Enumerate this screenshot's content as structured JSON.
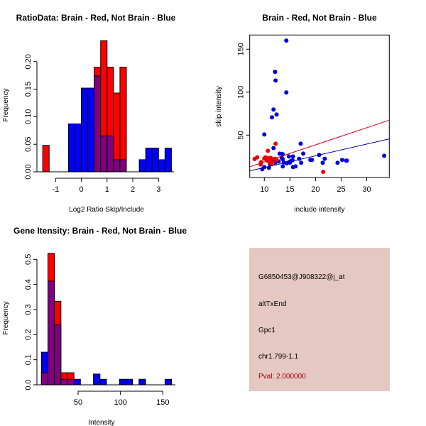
{
  "colors": {
    "red": "#ff0000",
    "blue": "#0000ff",
    "overlap": "#800080",
    "panel_bg": "#e6c8c2",
    "pval": "#a00000",
    "red_line": "#cc0022",
    "blue_line": "#000099"
  },
  "chart_data": [
    {
      "type": "bar",
      "title": "RatioData: Brain - Red, Not Brain - Blue",
      "xlabel": "Log2 Ratio Skip/Include",
      "ylabel": "Frequency",
      "xlim": [
        -1.6,
        3.6
      ],
      "ylim": [
        0,
        0.24
      ],
      "xticks": [
        -1,
        0,
        1,
        2,
        3
      ],
      "yticks": [
        "0.00",
        "0.05",
        "0.10",
        "0.15",
        "0.20"
      ],
      "bin_width": 0.25,
      "series": [
        {
          "name": "Not Brain",
          "color": "blue",
          "bins": [
            [
              -0.5,
              0.087
            ],
            [
              -0.25,
              0.087
            ],
            [
              0,
              0.152
            ],
            [
              0.25,
              0.152
            ],
            [
              0.5,
              0.174
            ],
            [
              0.75,
              0.065
            ],
            [
              1,
              0.065
            ],
            [
              1.25,
              0.022
            ],
            [
              1.5,
              0.022
            ],
            [
              2.25,
              0.022
            ],
            [
              2.5,
              0.043
            ],
            [
              2.75,
              0.043
            ],
            [
              3,
              0.022
            ],
            [
              3.25,
              0.043
            ]
          ]
        },
        {
          "name": "Brain",
          "color": "red",
          "bins": [
            [
              -1.5,
              0.048
            ],
            [
              0.5,
              0.19
            ],
            [
              0.75,
              0.238
            ],
            [
              1,
              0.19
            ],
            [
              1.25,
              0.143
            ],
            [
              1.5,
              0.19
            ]
          ]
        }
      ]
    },
    {
      "type": "scatter",
      "title": "Brain - Red, Not Brain - Blue",
      "xlabel": "include intensity",
      "ylabel": "skip intensity",
      "xlim": [
        7.15,
        34.4
      ],
      "ylim": [
        0.7,
        166.5
      ],
      "xticks": [
        10,
        15,
        20,
        25,
        30
      ],
      "yticks": [
        50,
        100,
        150
      ],
      "series": [
        {
          "name": "Not Brain",
          "color": "blue",
          "fit": {
            "slope": 1.365,
            "intercept": -1.35
          },
          "points": [
            [
              14.3,
              160
            ],
            [
              12.1,
              123.6
            ],
            [
              12.2,
              113.6
            ],
            [
              14.3,
              99.6
            ],
            [
              11.8,
              79.8
            ],
            [
              12.4,
              74
            ],
            [
              11.5,
              70.7
            ],
            [
              10,
              50.8
            ],
            [
              17.1,
              40
            ],
            [
              11.8,
              35
            ],
            [
              13,
              28.5
            ],
            [
              13.5,
              28.2
            ],
            [
              13.6,
              27.7
            ],
            [
              17.6,
              28.5
            ],
            [
              20.7,
              26.9
            ],
            [
              33.4,
              26
            ],
            [
              14.8,
              25.2
            ],
            [
              15.6,
              25.2
            ],
            [
              13.4,
              23.6
            ],
            [
              13.6,
              22
            ],
            [
              16.8,
              22.5
            ],
            [
              21.8,
              22.5
            ],
            [
              19,
              21.1
            ],
            [
              25.2,
              21.1
            ],
            [
              26,
              20.3
            ],
            [
              26.1,
              20.3
            ],
            [
              15.5,
              20.8
            ],
            [
              12.8,
              19.4
            ],
            [
              12.1,
              17.8
            ],
            [
              14.8,
              18.6
            ],
            [
              17.2,
              17.8
            ],
            [
              21.4,
              17.8
            ],
            [
              24.3,
              17.8
            ],
            [
              13.8,
              18.3
            ],
            [
              14.4,
              17.2
            ],
            [
              13.6,
              13.6
            ],
            [
              15.6,
              12.8
            ],
            [
              16.1,
              13.6
            ],
            [
              10,
              12.8
            ],
            [
              10.9,
              12
            ],
            [
              9.6,
              10.3
            ],
            [
              11.1,
              16.4
            ],
            [
              11.9,
              21.1
            ],
            [
              19.3,
              21.1
            ],
            [
              15.2,
              20
            ],
            [
              15,
              18
            ]
          ]
        },
        {
          "name": "Brain",
          "color": "red",
          "fit": {
            "slope": 1.99,
            "intercept": -1.1
          },
          "points": [
            [
              8.1,
              22.2
            ],
            [
              8.6,
              24.1
            ],
            [
              10.7,
              31.8
            ],
            [
              12.2,
              40
            ],
            [
              9.4,
              18.6
            ],
            [
              9.3,
              15.8
            ],
            [
              10.2,
              24.1
            ],
            [
              10.5,
              23.6
            ],
            [
              11.2,
              23.6
            ],
            [
              10.8,
              22.2
            ],
            [
              12.1,
              22.5
            ],
            [
              12.4,
              21.3
            ],
            [
              10.7,
              20
            ],
            [
              11.1,
              17.8
            ],
            [
              11.4,
              16.7
            ],
            [
              11.6,
              17.8
            ],
            [
              10,
              22.7
            ],
            [
              10.5,
              21.3
            ],
            [
              11.5,
              22.5
            ],
            [
              21.5,
              7.3
            ],
            [
              11.1,
              20.5
            ]
          ]
        }
      ]
    },
    {
      "type": "bar",
      "title": "Gene Itensity: Brain - Red, Not Brain - Blue",
      "xlabel": "Intensity",
      "ylabel": "Frequency",
      "xlim": [
        0,
        165
      ],
      "ylim": [
        0,
        0.55
      ],
      "xticks": [
        50,
        100,
        150
      ],
      "yticks": [
        "0.0",
        "0.1",
        "0.2",
        "0.3",
        "0.4",
        "0.5"
      ],
      "bin_start": 6.7,
      "bin_width": 7.68,
      "series": [
        {
          "name": "Not Brain",
          "color": "blue",
          "bins": [
            [
              0,
              0.13
            ],
            [
              1,
              0.413
            ],
            [
              2,
              0.239
            ],
            [
              3,
              0.022
            ],
            [
              4,
              0.022
            ],
            [
              5,
              0.022
            ],
            [
              8,
              0.043
            ],
            [
              9,
              0.022
            ],
            [
              12,
              0.022
            ],
            [
              13,
              0.022
            ],
            [
              15,
              0.022
            ],
            [
              19,
              0.022
            ]
          ]
        },
        {
          "name": "Brain",
          "color": "red",
          "bins": [
            [
              0,
              0.048
            ],
            [
              1,
              0.524
            ],
            [
              2,
              0.333
            ],
            [
              3,
              0.048
            ],
            [
              4,
              0.048
            ]
          ]
        }
      ]
    }
  ],
  "info_panel": {
    "probe_id": "G6850453@J908322@j_at",
    "event_type": "altTxEnd",
    "gene": "Gpc1",
    "location": "chr1.799-1.1",
    "pval": "Pval: 2.000000"
  }
}
